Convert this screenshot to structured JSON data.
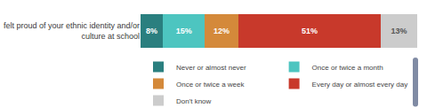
{
  "chart_data": {
    "type": "bar",
    "orientation": "horizontal",
    "stacked": true,
    "categories": [
      "felt proud of your ethnic identity and/or\nculture at school"
    ],
    "series": [
      {
        "name": "Never or almost never",
        "color": "#2a7f7f",
        "values": [
          8
        ],
        "value_labels": [
          "8%"
        ]
      },
      {
        "name": "Once or twice a month",
        "color": "#4dc5c0",
        "values": [
          15
        ],
        "value_labels": [
          "15%"
        ]
      },
      {
        "name": "Once or twice a week",
        "color": "#d4893a",
        "values": [
          12
        ],
        "value_labels": [
          "12%"
        ]
      },
      {
        "name": "Every day or almost every day",
        "color": "#c8392b",
        "values": [
          51
        ],
        "value_labels": [
          "51%"
        ]
      },
      {
        "name": "Don't know",
        "color": "#cccccc",
        "values": [
          13
        ],
        "value_labels": [
          "13%"
        ]
      }
    ],
    "xlim": [
      0,
      100
    ],
    "data_labels": true,
    "tick_labels": "y",
    "grid": false,
    "legend": "bottom"
  }
}
